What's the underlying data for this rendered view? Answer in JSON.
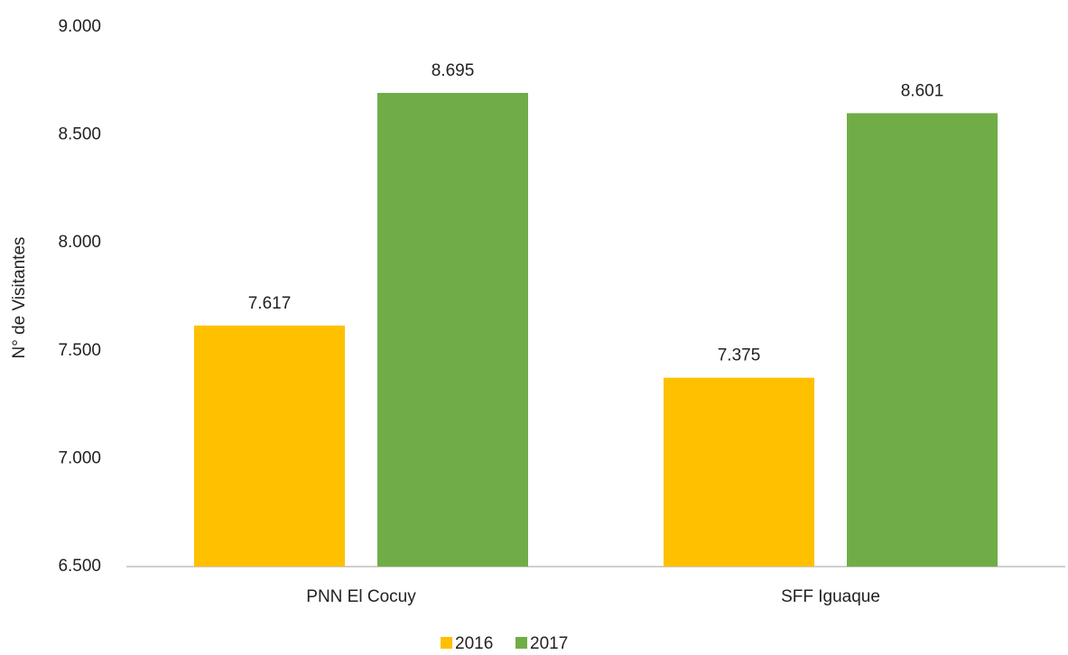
{
  "chart_data": {
    "type": "bar",
    "y_label": "N° de Visitantes",
    "categories": [
      "PNN El Cocuy",
      "SFF Iguaque"
    ],
    "series": [
      {
        "name": "2016",
        "color": "#ffc000",
        "values": [
          7617,
          7375
        ],
        "value_labels": [
          "7.617",
          "7.375"
        ]
      },
      {
        "name": "2017",
        "color": "#70ad47",
        "values": [
          8695,
          8601
        ],
        "value_labels": [
          "8.695",
          "8.601"
        ]
      }
    ],
    "ylim": [
      6500,
      9000
    ],
    "yticks": [
      {
        "value": 6500,
        "label": "6.500"
      },
      {
        "value": 7000,
        "label": "7.000"
      },
      {
        "value": 7500,
        "label": "7.500"
      },
      {
        "value": 8000,
        "label": "8.000"
      },
      {
        "value": 8500,
        "label": "8.500"
      },
      {
        "value": 9000,
        "label": "9.000"
      }
    ],
    "grid": false,
    "legend": "bottom"
  }
}
